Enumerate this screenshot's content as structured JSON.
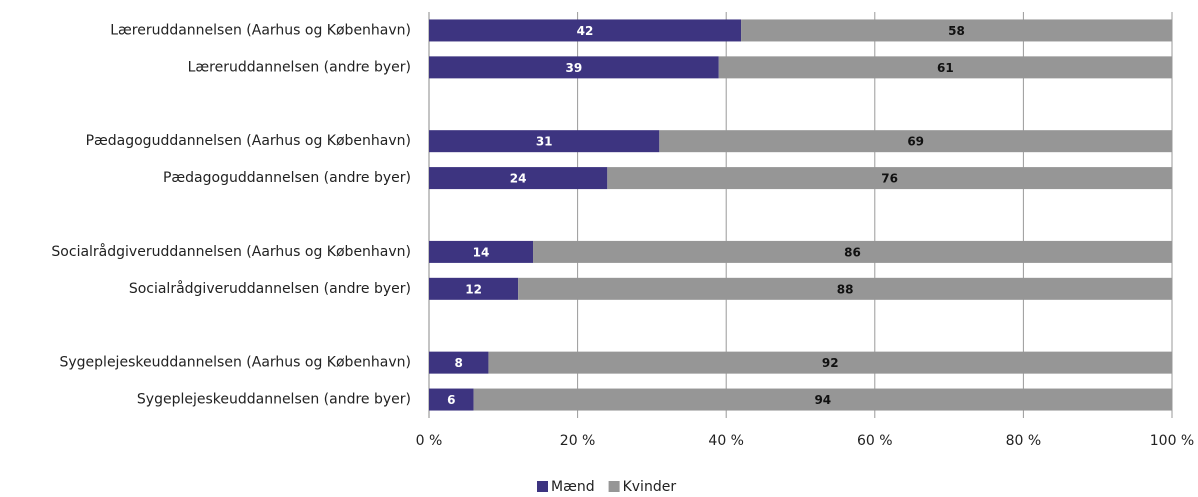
{
  "chart_data": {
    "type": "stacked_barh",
    "categories": [
      "Læreruddannelsen (Aarhus og København)",
      "Læreruddannelsen (andre byer)",
      null,
      "Pædagoguddannelsen (Aarhus og København)",
      "Pædagoguddannelsen (andre byer)",
      null,
      "Socialrådgiveruddannelsen (Aarhus og København)",
      "Socialrådgiveruddannelsen (andre byer)",
      null,
      "Sygeplejeskeuddannelsen (Aarhus og København)",
      "Sygeplejeskeuddannelsen (andre byer)"
    ],
    "series": [
      {
        "name": "Mænd",
        "color": "#3d3480",
        "values": [
          42,
          39,
          null,
          31,
          24,
          null,
          14,
          12,
          null,
          8,
          6
        ]
      },
      {
        "name": "Kvinder",
        "color": "#969696",
        "values": [
          58,
          61,
          null,
          69,
          76,
          null,
          86,
          88,
          null,
          92,
          94
        ]
      }
    ],
    "xlim": [
      0,
      100
    ],
    "xticks": [
      {
        "value": 0,
        "label": "0 %"
      },
      {
        "value": 20,
        "label": "20 %"
      },
      {
        "value": 40,
        "label": "40 %"
      },
      {
        "value": 60,
        "label": "60 %"
      },
      {
        "value": 80,
        "label": "80 %"
      },
      {
        "value": 100,
        "label": "100 %"
      }
    ],
    "grid": true,
    "legend": "bottom"
  }
}
